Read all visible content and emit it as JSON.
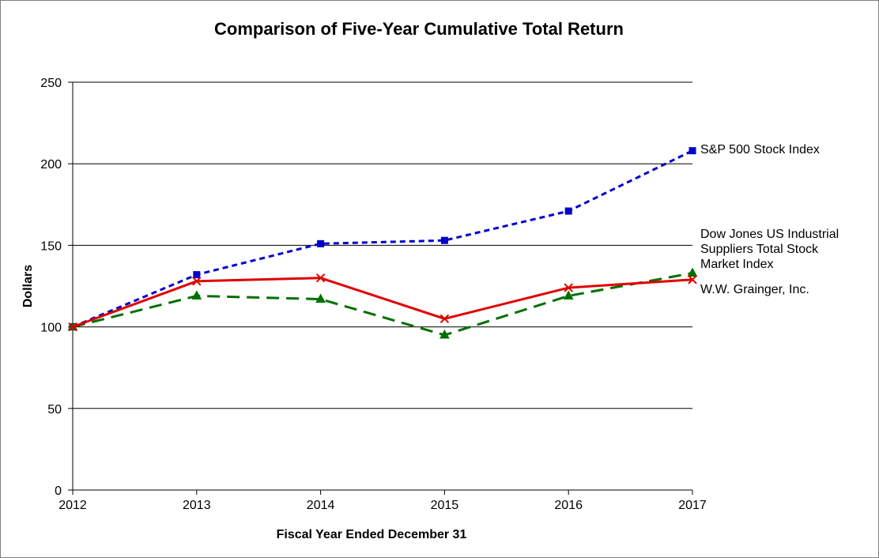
{
  "chart_data": {
    "type": "line",
    "title": "Comparison of Five-Year Cumulative Total Return",
    "xlabel": "Fiscal Year Ended December 31",
    "ylabel": "Dollars",
    "categories": [
      "2012",
      "2013",
      "2014",
      "2015",
      "2016",
      "2017"
    ],
    "ylim": [
      0,
      250
    ],
    "yticks": [
      0,
      50,
      100,
      150,
      200,
      250
    ],
    "grid": true,
    "legend": "direct labels at right of series",
    "series": [
      {
        "name": "S&P 500 Stock Index",
        "label_lines": [
          "S&P 500 Stock Index"
        ],
        "values": [
          100,
          132,
          151,
          153,
          171,
          208
        ],
        "color": "#0000cc",
        "line_style": "short-dash",
        "marker": "square"
      },
      {
        "name": "Dow Jones US Industrial Suppliers Total Stock Market Index",
        "label_lines": [
          "Dow Jones US Industrial",
          "Suppliers Total Stock",
          "Market Index"
        ],
        "values": [
          100,
          119,
          117,
          95,
          119,
          133
        ],
        "color": "#007000",
        "line_style": "long-dash",
        "marker": "triangle"
      },
      {
        "name": "W.W. Grainger, Inc.",
        "label_lines": [
          "W.W. Grainger, Inc."
        ],
        "values": [
          100,
          128,
          130,
          105,
          124,
          129
        ],
        "color": "#e00000",
        "line_style": "solid",
        "marker": "x"
      }
    ]
  }
}
